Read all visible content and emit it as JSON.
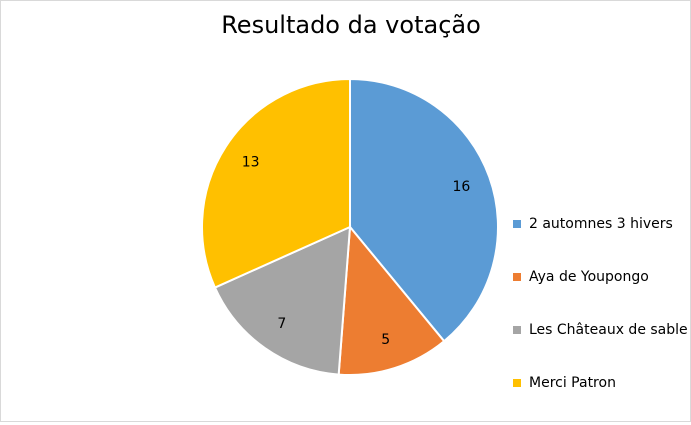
{
  "chart_data": {
    "type": "pie",
    "title": "Resultado da votação",
    "categories": [
      "2 automnes 3 hivers",
      "Aya de Youpongo",
      "Les Châteaux de sable",
      "Merci Patron"
    ],
    "values": [
      16,
      5,
      7,
      13
    ],
    "colors": [
      "#5b9bd5",
      "#ed7d31",
      "#a5a5a5",
      "#ffc000"
    ],
    "data_labels": [
      "16",
      "5",
      "7",
      "13"
    ],
    "legend_position": "right",
    "start_angle": "12 o'clock, clockwise"
  }
}
